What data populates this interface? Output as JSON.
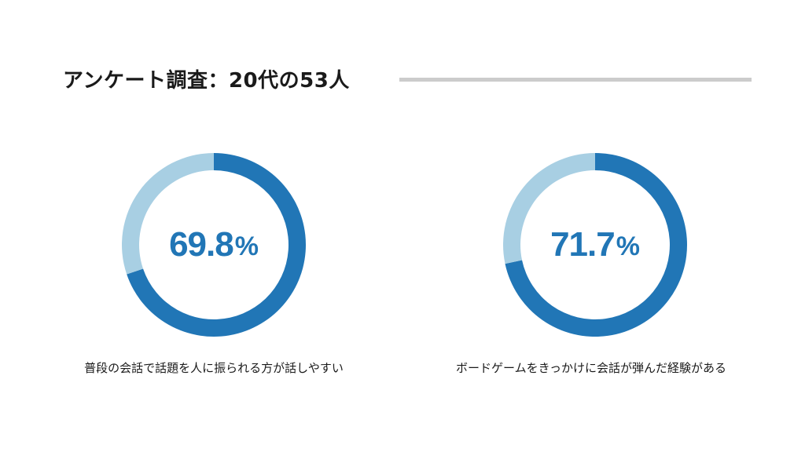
{
  "title": "アンケート調査：20代の53人",
  "colors": {
    "primary": "#2176b6",
    "secondary": "#a8cfe3",
    "rule": "#cccccc"
  },
  "chart_data": [
    {
      "type": "pie",
      "values": [
        69.8,
        30.2
      ],
      "value_label": "69.8",
      "unit": "%",
      "caption": "普段の会話で話題を人に振られる方が話しやすい"
    },
    {
      "type": "pie",
      "values": [
        71.7,
        28.3
      ],
      "value_label": "71.7",
      "unit": "%",
      "caption": "ボードゲームをきっかけに会話が弾んだ経験がある"
    }
  ]
}
